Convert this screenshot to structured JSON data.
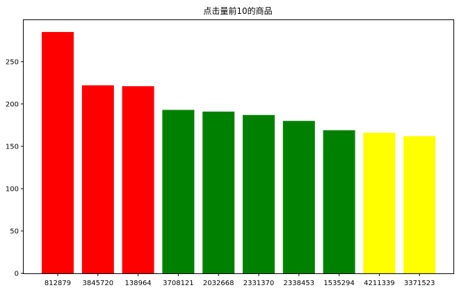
{
  "chart_data": {
    "type": "bar",
    "title": "点击量前10的商品",
    "xlabel": "",
    "ylabel": "",
    "categories": [
      "812879",
      "3845720",
      "138964",
      "3708121",
      "2032668",
      "2331370",
      "2338453",
      "1535294",
      "4211339",
      "3371523"
    ],
    "values": [
      285,
      222,
      221,
      193,
      191,
      187,
      180,
      169,
      166,
      162
    ],
    "colors": [
      "#ff0000",
      "#ff0000",
      "#ff0000",
      "#008000",
      "#008000",
      "#008000",
      "#008000",
      "#008000",
      "#ffff00",
      "#ffff00"
    ],
    "ylim": [
      0,
      299
    ],
    "yticks": [
      "0",
      "50",
      "100",
      "150",
      "200",
      "250"
    ],
    "grid": false,
    "legend": "none"
  }
}
